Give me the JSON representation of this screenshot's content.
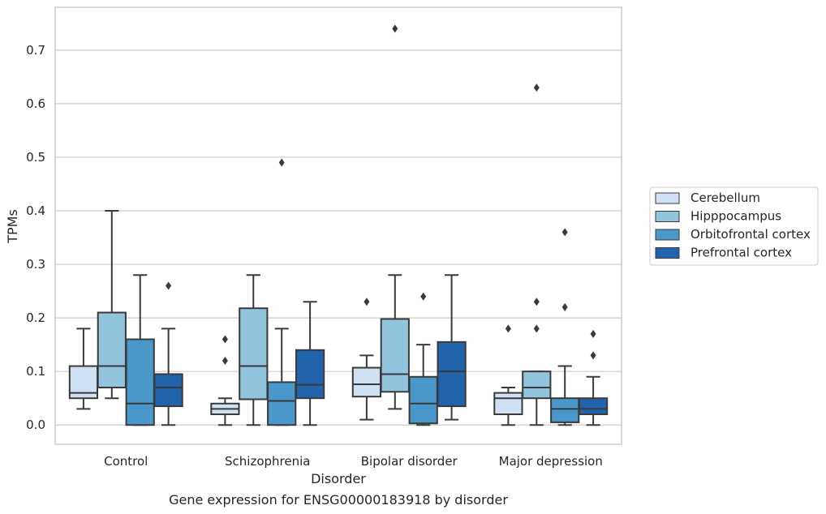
{
  "caption": "Gene expression for ENSG00000183918 by disorder",
  "chart_data": {
    "type": "box",
    "xlabel": "Disorder",
    "ylabel": "TPMs",
    "ylim": [
      -0.036,
      0.78
    ],
    "yticks": [
      0.0,
      0.1,
      0.2,
      0.3,
      0.4,
      0.5,
      0.6,
      0.7
    ],
    "ytick_labels": [
      "0.0",
      "0.1",
      "0.2",
      "0.3",
      "0.4",
      "0.5",
      "0.6",
      "0.7"
    ],
    "grid": "horizontal",
    "legend_position": "right",
    "categories": [
      "Control",
      "Schizophrenia",
      "Bipolar disorder",
      "Major depression"
    ],
    "series": [
      {
        "name": "Cerebellum",
        "color": "#cfe1f2",
        "boxes": [
          {
            "whisker_low": 0.03,
            "q1": 0.05,
            "median": 0.06,
            "q3": 0.11,
            "whisker_high": 0.18,
            "outliers": []
          },
          {
            "whisker_low": 0.0,
            "q1": 0.02,
            "median": 0.03,
            "q3": 0.04,
            "whisker_high": 0.05,
            "outliers": [
              0.12,
              0.16
            ]
          },
          {
            "whisker_low": 0.01,
            "q1": 0.053,
            "median": 0.076,
            "q3": 0.107,
            "whisker_high": 0.13,
            "outliers": [
              0.23
            ]
          },
          {
            "whisker_low": 0.0,
            "q1": 0.02,
            "median": 0.05,
            "q3": 0.06,
            "whisker_high": 0.07,
            "outliers": [
              0.18
            ]
          }
        ]
      },
      {
        "name": "Hipppocampus",
        "color": "#93c4de",
        "boxes": [
          {
            "whisker_low": 0.05,
            "q1": 0.07,
            "median": 0.11,
            "q3": 0.21,
            "whisker_high": 0.4,
            "outliers": []
          },
          {
            "whisker_low": 0.0,
            "q1": 0.048,
            "median": 0.11,
            "q3": 0.218,
            "whisker_high": 0.28,
            "outliers": []
          },
          {
            "whisker_low": 0.03,
            "q1": 0.062,
            "median": 0.095,
            "q3": 0.198,
            "whisker_high": 0.28,
            "outliers": [
              0.74
            ]
          },
          {
            "whisker_low": 0.0,
            "q1": 0.05,
            "median": 0.07,
            "q3": 0.1,
            "whisker_high": 0.1,
            "outliers": [
              0.18,
              0.23,
              0.63
            ]
          }
        ]
      },
      {
        "name": "Orbitofrontal cortex",
        "color": "#4a98c9",
        "boxes": [
          {
            "whisker_low": 0.0,
            "q1": 0.0,
            "median": 0.04,
            "q3": 0.16,
            "whisker_high": 0.28,
            "outliers": []
          },
          {
            "whisker_low": 0.0,
            "q1": 0.0,
            "median": 0.045,
            "q3": 0.08,
            "whisker_high": 0.18,
            "outliers": [
              0.49
            ]
          },
          {
            "whisker_low": 0.0,
            "q1": 0.003,
            "median": 0.04,
            "q3": 0.09,
            "whisker_high": 0.15,
            "outliers": [
              0.24
            ]
          },
          {
            "whisker_low": 0.0,
            "q1": 0.005,
            "median": 0.03,
            "q3": 0.05,
            "whisker_high": 0.11,
            "outliers": [
              0.22,
              0.36
            ]
          }
        ]
      },
      {
        "name": "Prefrontal cortex",
        "color": "#2164ab",
        "boxes": [
          {
            "whisker_low": 0.0,
            "q1": 0.035,
            "median": 0.07,
            "q3": 0.095,
            "whisker_high": 0.18,
            "outliers": [
              0.26
            ]
          },
          {
            "whisker_low": 0.0,
            "q1": 0.05,
            "median": 0.075,
            "q3": 0.14,
            "whisker_high": 0.23,
            "outliers": []
          },
          {
            "whisker_low": 0.01,
            "q1": 0.035,
            "median": 0.1,
            "q3": 0.155,
            "whisker_high": 0.28,
            "outliers": []
          },
          {
            "whisker_low": 0.0,
            "q1": 0.02,
            "median": 0.03,
            "q3": 0.05,
            "whisker_high": 0.09,
            "outliers": [
              0.13,
              0.17
            ]
          }
        ]
      }
    ]
  }
}
